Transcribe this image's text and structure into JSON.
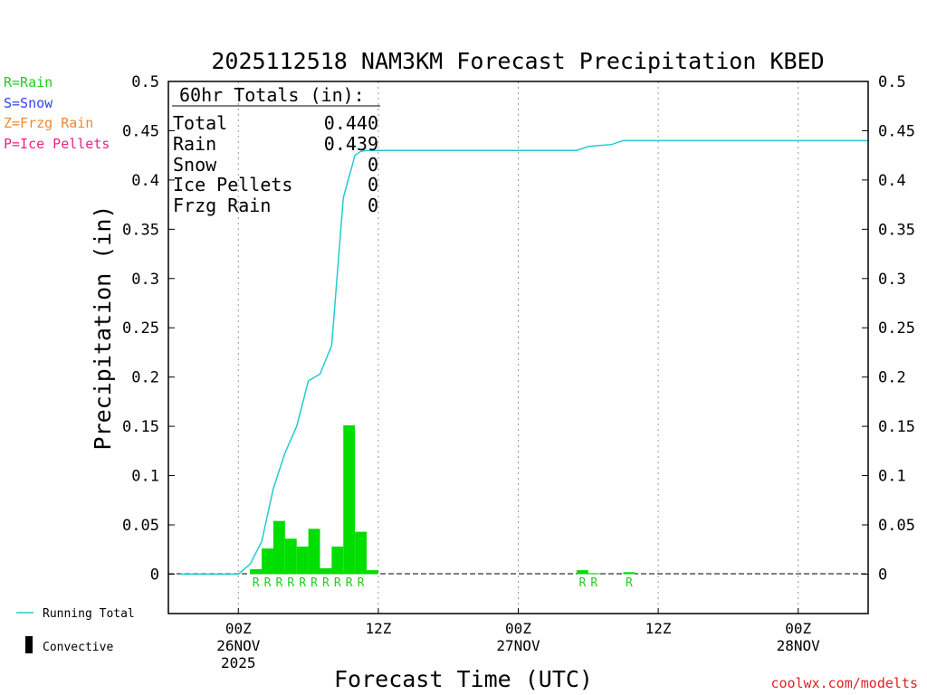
{
  "chart_data": {
    "type": "bar+line",
    "title": "2025112518 NAM3KM Forecast Precipitation KBED",
    "ylabel": "Precipitation (in)",
    "xlabel": "Forecast Time (UTC)",
    "ylim": [
      -0.04,
      0.5
    ],
    "yticks": [
      0,
      0.05,
      0.1,
      0.15,
      0.2,
      0.25,
      0.3,
      0.35,
      0.4,
      0.45,
      0.5
    ],
    "ytick_labels": [
      "0",
      "0.05",
      "0.1",
      "0.15",
      "0.2",
      "0.25",
      "0.3",
      "0.35",
      "0.4",
      "0.45",
      "0.5"
    ],
    "xlim_hours": [
      0,
      60
    ],
    "xticks": [
      {
        "hour": 6,
        "lines": [
          "00Z",
          "26NOV",
          "2025"
        ]
      },
      {
        "hour": 18,
        "lines": [
          "12Z"
        ]
      },
      {
        "hour": 30,
        "lines": [
          "00Z",
          "27NOV"
        ]
      },
      {
        "hour": 42,
        "lines": [
          "12Z"
        ]
      },
      {
        "hour": 54,
        "lines": [
          "00Z",
          "28NOV"
        ]
      }
    ],
    "precip_type_legend": [
      {
        "text": "R=Rain",
        "color": "#22cc22"
      },
      {
        "text": "S=Snow",
        "color": "#3344ee"
      },
      {
        "text": "Z=Frzg Rain",
        "color": "#ee8833"
      },
      {
        "text": "P=Ice Pellets",
        "color": "#ee2288"
      }
    ],
    "totals": {
      "header": "60hr Totals (in):",
      "rows": [
        {
          "label": "Total",
          "value": "0.440"
        },
        {
          "label": "Rain",
          "value": "0.439"
        },
        {
          "label": "Snow",
          "value": "0"
        },
        {
          "label": "Ice Pellets",
          "value": "0"
        },
        {
          "label": "Frzg Rain",
          "value": "0"
        }
      ]
    },
    "hourly_precip": {
      "color": "#00dd00",
      "hours": [
        7,
        8,
        9,
        10,
        11,
        12,
        13,
        14,
        15,
        16,
        17,
        35,
        36,
        39
      ],
      "values": [
        0.005,
        0.026,
        0.054,
        0.036,
        0.028,
        0.046,
        0.006,
        0.028,
        0.151,
        0.043,
        0.004,
        0.004,
        0.001,
        0.002
      ]
    },
    "type_markers": {
      "letter": "R",
      "color": "#22cc22",
      "hours": [
        7.5,
        8.5,
        9.5,
        10.5,
        11.5,
        12.5,
        13.5,
        14.5,
        15.5,
        16.5,
        35.5,
        36.5,
        39.5
      ]
    },
    "running_total": {
      "name": "Running Total",
      "color": "#22cccc",
      "points": [
        [
          1,
          0
        ],
        [
          6,
          0
        ],
        [
          6.5,
          0.005
        ],
        [
          7,
          0.01
        ],
        [
          8,
          0.033
        ],
        [
          9,
          0.087
        ],
        [
          10,
          0.123
        ],
        [
          11,
          0.15
        ],
        [
          12,
          0.196
        ],
        [
          13,
          0.203
        ],
        [
          14,
          0.232
        ],
        [
          15,
          0.382
        ],
        [
          16,
          0.425
        ],
        [
          16.5,
          0.429
        ],
        [
          17,
          0.43
        ],
        [
          18,
          0.43
        ],
        [
          35,
          0.43
        ],
        [
          36,
          0.434
        ],
        [
          37,
          0.435
        ],
        [
          38,
          0.436
        ],
        [
          39,
          0.44
        ],
        [
          60,
          0.44
        ]
      ]
    },
    "line_legend": [
      {
        "label": "Running Total",
        "kind": "line",
        "color": "#22cccc"
      },
      {
        "label": "Convective",
        "kind": "bar",
        "color": "#000000"
      }
    ],
    "credit": {
      "text": "coolwx.com/modelts",
      "color": "#dd2222"
    }
  }
}
